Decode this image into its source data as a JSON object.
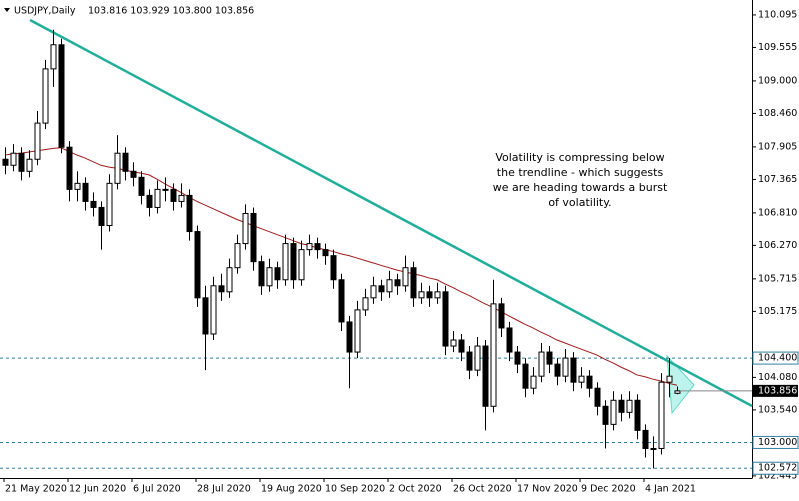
{
  "chart_data": {
    "type": "candlestick",
    "header": {
      "symbol": "USDJPY,Daily",
      "quote": "103.816 103.929 103.800 103.856"
    },
    "annotation": [
      "Volatility is compressing below",
      "the trendline - which suggests",
      "we are heading towards a burst",
      "of volatility."
    ],
    "ylim": [
      102.41,
      110.21
    ],
    "yticks": [
      {
        "value": 110.095,
        "label": "110.095"
      },
      {
        "value": 109.555,
        "label": "109.555"
      },
      {
        "value": 109,
        "label": "109.000"
      },
      {
        "value": 108.46,
        "label": "108.460"
      },
      {
        "value": 107.905,
        "label": "107.905"
      },
      {
        "value": 107.365,
        "label": "107.365"
      },
      {
        "value": 106.81,
        "label": "106.810"
      },
      {
        "value": 106.27,
        "label": "106.270"
      },
      {
        "value": 105.715,
        "label": "105.715"
      },
      {
        "value": 105.175,
        "label": "105.175"
      },
      {
        "value": 104.08,
        "label": "104.080"
      },
      {
        "value": 103.54,
        "label": "103.540"
      },
      {
        "value": 102.445,
        "label": "102.445"
      }
    ],
    "levels": [
      {
        "value": 104.4,
        "label": "104.400"
      },
      {
        "value": 103,
        "label": "103.000"
      },
      {
        "value": 102.572,
        "label": "102.572"
      }
    ],
    "level_color": "#2f7f9f",
    "bull_color": "#ffffff",
    "bear_color": "#000000",
    "categories": [
      null,
      null,
      null,
      "21 May 2020",
      null,
      null,
      null,
      null,
      null,
      null,
      null,
      "12 Jun 2020",
      null,
      null,
      null,
      null,
      null,
      null,
      null,
      "6 Jul 2020",
      null,
      null,
      null,
      null,
      null,
      null,
      null,
      "28 Jul 2020",
      null,
      null,
      null,
      null,
      null,
      null,
      null,
      "19 Aug 2020",
      null,
      null,
      null,
      null,
      null,
      null,
      null,
      "10 Sep 2020",
      null,
      null,
      null,
      null,
      null,
      null,
      null,
      "2 Oct 2020",
      null,
      null,
      null,
      null,
      null,
      null,
      null,
      "26 Oct 2020",
      null,
      null,
      null,
      null,
      null,
      null,
      null,
      "17 Nov 2020",
      null,
      null,
      null,
      null,
      null,
      null,
      null,
      "9 Dec 2020",
      null,
      null,
      null,
      null,
      null,
      null,
      null,
      "4 Jan 2021",
      null
    ],
    "open": [
      107.7,
      107.6,
      107.8,
      107.5,
      107.7,
      108.3,
      109.2,
      109.6,
      107.9,
      107.2,
      107.3,
      107.0,
      106.9,
      106.6,
      107.3,
      107.8,
      107.5,
      107.4,
      107.1,
      106.9,
      107.2,
      107.2,
      107.0,
      107.1,
      106.5,
      105.4,
      104.8,
      105.6,
      105.5,
      105.9,
      106.3,
      106.8,
      106.0,
      105.6,
      105.9,
      105.7,
      106.3,
      105.7,
      106.2,
      106.3,
      106.2,
      106.1,
      105.7,
      105.0,
      104.5,
      105.2,
      105.4,
      105.6,
      105.5,
      105.7,
      105.6,
      105.9,
      105.4,
      105.5,
      105.4,
      105.5,
      104.6,
      104.7,
      104.5,
      104.2,
      104.6,
      103.6,
      105.3,
      104.9,
      104.5,
      104.3,
      103.9,
      104.1,
      104.5,
      104.3,
      104.1,
      104.4,
      104.0,
      104.1,
      103.9,
      103.6,
      103.3,
      103.7,
      103.5,
      103.7,
      103.2,
      102.9,
      102.9,
      104.0,
      103.816
    ],
    "high": [
      107.9,
      107.95,
      107.9,
      107.85,
      108.5,
      109.35,
      109.85,
      109.7,
      108.0,
      107.5,
      107.4,
      107.15,
      107.0,
      107.45,
      108.1,
      107.9,
      107.65,
      107.5,
      107.2,
      107.35,
      107.4,
      107.3,
      107.3,
      107.2,
      106.6,
      105.6,
      105.75,
      105.8,
      106.05,
      106.45,
      106.95,
      106.9,
      106.1,
      106.05,
      106.0,
      106.45,
      106.4,
      106.35,
      106.45,
      106.4,
      106.3,
      106.2,
      105.8,
      105.1,
      105.35,
      105.55,
      105.75,
      105.7,
      105.85,
      105.8,
      106.1,
      106.0,
      105.65,
      105.6,
      105.65,
      105.6,
      104.85,
      104.8,
      104.6,
      104.75,
      104.7,
      105.7,
      105.4,
      105.0,
      104.6,
      104.4,
      104.25,
      104.65,
      104.6,
      104.4,
      104.55,
      104.5,
      104.25,
      104.2,
      104.0,
      103.7,
      103.85,
      103.8,
      103.85,
      103.8,
      103.3,
      103.1,
      104.15,
      104.4,
      103.929
    ],
    "low": [
      107.45,
      107.5,
      107.35,
      107.4,
      107.6,
      108.2,
      108.9,
      107.8,
      107.0,
      107.0,
      106.85,
      106.75,
      106.2,
      106.5,
      107.2,
      107.35,
      107.25,
      106.95,
      106.75,
      106.8,
      107.0,
      106.85,
      106.9,
      106.35,
      105.25,
      104.2,
      104.7,
      105.35,
      105.4,
      105.8,
      106.2,
      105.85,
      105.45,
      105.5,
      105.55,
      105.6,
      105.55,
      105.6,
      106.1,
      106.05,
      105.95,
      105.55,
      104.85,
      103.9,
      104.4,
      105.1,
      105.3,
      105.35,
      105.4,
      105.45,
      105.5,
      105.25,
      105.3,
      105.25,
      105.3,
      104.45,
      104.5,
      104.35,
      104.05,
      104.1,
      103.2,
      103.5,
      104.75,
      104.35,
      104.15,
      103.75,
      103.8,
      104.0,
      104.15,
      103.95,
      104.0,
      103.85,
      103.9,
      103.75,
      103.45,
      102.9,
      103.2,
      103.35,
      103.4,
      103.05,
      102.75,
      102.57,
      102.8,
      103.75,
      103.8
    ],
    "close": [
      107.6,
      107.8,
      107.5,
      107.7,
      108.3,
      109.2,
      109.6,
      107.9,
      107.2,
      107.3,
      107.0,
      106.9,
      106.6,
      107.3,
      107.8,
      107.5,
      107.4,
      107.1,
      106.9,
      107.2,
      107.2,
      107.0,
      107.1,
      106.5,
      105.4,
      104.8,
      105.6,
      105.5,
      105.9,
      106.3,
      106.8,
      106.0,
      105.6,
      105.9,
      105.7,
      106.3,
      105.7,
      106.2,
      106.3,
      106.2,
      106.1,
      105.7,
      105.0,
      104.5,
      105.2,
      105.4,
      105.6,
      105.5,
      105.7,
      105.6,
      105.9,
      105.4,
      105.5,
      105.4,
      105.5,
      104.6,
      104.7,
      104.5,
      104.2,
      104.6,
      103.6,
      105.3,
      104.9,
      104.5,
      104.3,
      103.9,
      104.1,
      104.5,
      104.3,
      104.1,
      104.4,
      104.0,
      104.1,
      103.9,
      103.6,
      103.3,
      103.7,
      103.5,
      103.7,
      103.2,
      102.9,
      102.9,
      104.0,
      104.1,
      103.856
    ],
    "ma": {
      "color": "#a01818",
      "values": [
        107.77,
        107.79,
        107.8,
        107.82,
        107.84,
        107.86,
        107.88,
        107.89,
        107.83,
        107.77,
        107.72,
        107.66,
        107.6,
        107.57,
        107.55,
        107.52,
        107.49,
        107.47,
        107.44,
        107.37,
        107.29,
        107.22,
        107.15,
        107.07,
        107.0,
        106.94,
        106.88,
        106.82,
        106.76,
        106.7,
        106.65,
        106.6,
        106.55,
        106.5,
        106.45,
        106.4,
        106.35,
        106.3,
        106.27,
        106.23,
        106.2,
        106.17,
        106.13,
        106.1,
        106.06,
        106.02,
        105.98,
        105.94,
        105.9,
        105.86,
        105.83,
        105.8,
        105.77,
        105.73,
        105.7,
        105.63,
        105.57,
        105.5,
        105.44,
        105.37,
        105.3,
        105.24,
        105.17,
        105.1,
        105.03,
        104.96,
        104.9,
        104.83,
        104.77,
        104.7,
        104.65,
        104.6,
        104.55,
        104.5,
        104.45,
        104.38,
        104.32,
        104.25,
        104.19,
        104.12,
        104.09,
        104.05,
        104.02,
        103.98,
        103.95
      ]
    }
  }
}
